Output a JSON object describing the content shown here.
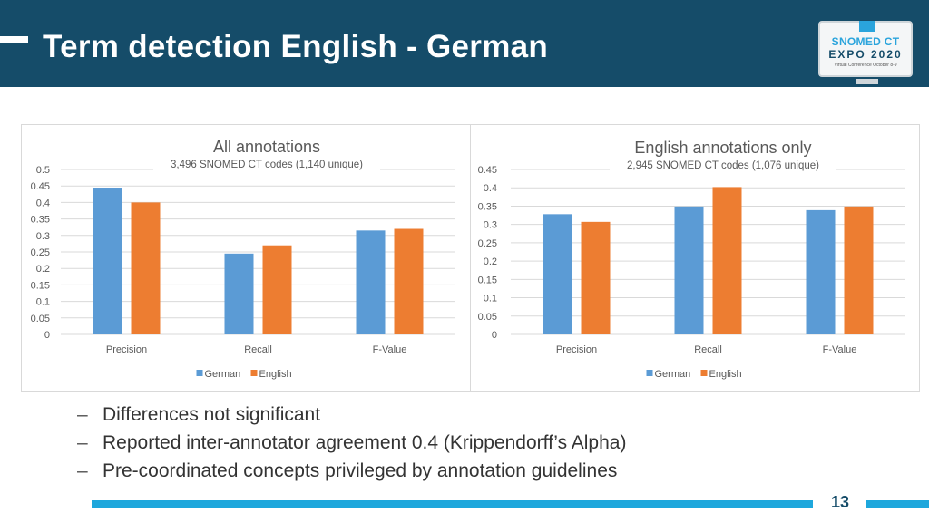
{
  "slide": {
    "title": "Term detection English - German",
    "logo": {
      "line1": "SNOMED CT",
      "line2": "EXPO 2020",
      "line3": "Virtual Conference October 8-9",
      "badge": "SNOMED"
    },
    "bullets": [
      "Differences not significant",
      "Reported inter-annotator agreement 0.4 (Krippendorff’s Alpha)",
      "Pre-coordinated concepts privileged by annotation guidelines"
    ],
    "page_number": "13",
    "colors": {
      "header": "#154c69",
      "accent": "#1ea7dc"
    }
  },
  "chart_data": [
    {
      "type": "bar",
      "title": "All annotations",
      "subtitle": "3,496 SNOMED CT codes (1,140 unique)",
      "categories": [
        "Precision",
        "Recall",
        "F-Value"
      ],
      "series": [
        {
          "name": "German",
          "color": "#5b9bd5",
          "values": [
            0.445,
            0.245,
            0.315
          ]
        },
        {
          "name": "English",
          "color": "#ed7d31",
          "values": [
            0.4,
            0.27,
            0.32
          ]
        }
      ],
      "ylim": [
        0,
        0.5
      ],
      "yticks": [
        "0",
        "0.05",
        "0.1",
        "0.15",
        "0.2",
        "0.25",
        "0.3",
        "0.35",
        "0.4",
        "0.45",
        "0.5"
      ],
      "grid": true,
      "legend": "bottom"
    },
    {
      "type": "bar",
      "title": "English annotations only",
      "subtitle": "2,945 SNOMED CT codes (1,076 unique)",
      "categories": [
        "Precision",
        "Recall",
        "F-Value"
      ],
      "series": [
        {
          "name": "German",
          "color": "#5b9bd5",
          "values": [
            0.328,
            0.349,
            0.339
          ]
        },
        {
          "name": "English",
          "color": "#ed7d31",
          "values": [
            0.307,
            0.402,
            0.349
          ]
        }
      ],
      "ylim": [
        0,
        0.45
      ],
      "yticks": [
        "0",
        "0.05",
        "0.1",
        "0.15",
        "0.2",
        "0.25",
        "0.3",
        "0.35",
        "0.4",
        "0.45"
      ],
      "grid": true,
      "legend": "bottom"
    }
  ]
}
